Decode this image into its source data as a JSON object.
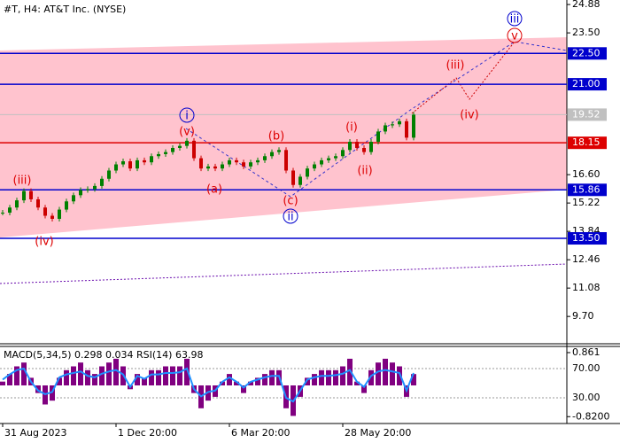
{
  "chart_data": [
    {
      "type": "candlestick",
      "title": "#T, H4:  AT&T Inc. (NYSE)",
      "categories": [
        "31 Aug 2023",
        null,
        null,
        null,
        null,
        null,
        null,
        null,
        null,
        null,
        null,
        null,
        null,
        null,
        null,
        null,
        "1 Dec 20:00",
        null,
        null,
        null,
        null,
        null,
        null,
        null,
        null,
        null,
        null,
        null,
        null,
        null,
        null,
        null,
        "6 Mar 20:00",
        null,
        null,
        null,
        null,
        null,
        null,
        null,
        null,
        null,
        null,
        null,
        null,
        null,
        null,
        null,
        "28 May 20:00",
        null,
        null,
        null,
        null,
        null,
        null,
        null,
        null,
        null,
        null
      ],
      "values": [
        14.75,
        15.0,
        15.35,
        15.8,
        15.4,
        15.0,
        14.6,
        14.45,
        14.9,
        15.3,
        15.6,
        15.85,
        15.9,
        16.05,
        16.4,
        16.8,
        17.1,
        17.25,
        16.9,
        17.3,
        17.2,
        17.5,
        17.6,
        17.7,
        17.9,
        18.0,
        18.25,
        17.4,
        16.9,
        17.0,
        16.9,
        17.1,
        17.3,
        17.2,
        17.0,
        17.2,
        17.3,
        17.5,
        17.7,
        17.8,
        16.8,
        16.1,
        16.5,
        16.9,
        17.1,
        17.3,
        17.4,
        17.5,
        17.8,
        18.2,
        17.9,
        17.7,
        18.2,
        18.7,
        19.0,
        19.05,
        19.2,
        18.4,
        19.52
      ],
      "up_color": "#008000",
      "down_color": "#cc0000",
      "ylim": [
        8.37,
        25.1
      ],
      "yticks": [
        24.88,
        {
          "value": 23.5,
          "label": "23.50"
        },
        {
          "value": 16.6,
          "label": "16.60"
        },
        15.22,
        13.84,
        12.46,
        11.08,
        {
          "value": 9.7,
          "label": "9.70"
        }
      ],
      "levels": [
        {
          "value": 22.5,
          "label": "22.50",
          "color": "#0000cd"
        },
        {
          "value": 21,
          "label": "21.00",
          "color": "#0000cd"
        },
        {
          "value": 18.15,
          "label": "18.15",
          "color": "#dd0000"
        },
        {
          "value": 15.86,
          "label": "15.86",
          "color": "#0000cd"
        },
        {
          "value": 13.5,
          "label": "13.50",
          "color": "#0000cd"
        }
      ],
      "current": {
        "value": 19.52,
        "label": "19.52",
        "color": "#c0c0c0"
      },
      "waves": [
        {
          "text": "(iii)",
          "style": "red"
        },
        {
          "text": "(iv)",
          "style": "red"
        },
        {
          "text": "i",
          "style": "circled-blue"
        },
        {
          "text": "(v)",
          "style": "red"
        },
        {
          "text": "(a)",
          "style": "red"
        },
        {
          "text": "(b)",
          "style": "red"
        },
        {
          "text": "(c)",
          "style": "red"
        },
        {
          "text": "ii",
          "style": "circled-blue"
        },
        {
          "text": "(i)",
          "style": "red"
        },
        {
          "text": "(ii)",
          "style": "red"
        },
        {
          "text": "(iii)",
          "style": "red"
        },
        {
          "text": "(iv)",
          "style": "red"
        },
        {
          "text": "v",
          "style": "circled-red"
        },
        {
          "text": "iii",
          "style": "circled-blue"
        }
      ]
    },
    {
      "type": "macd",
      "title": "MACD(5,34,5) 0.298 0.034 RSI(14) 63.98",
      "histogram": {
        "color": "#800080",
        "values": [
          0.1,
          0.3,
          0.5,
          0.6,
          0.2,
          -0.2,
          -0.5,
          -0.4,
          0.2,
          0.4,
          0.5,
          0.6,
          0.4,
          0.3,
          0.5,
          0.6,
          0.7,
          0.5,
          -0.1,
          0.3,
          0.2,
          0.4,
          0.4,
          0.5,
          0.5,
          0.5,
          0.7,
          -0.2,
          -0.6,
          -0.4,
          -0.3,
          0.1,
          0.3,
          0.1,
          -0.2,
          0.1,
          0.2,
          0.3,
          0.4,
          0.4,
          -0.6,
          -0.8,
          -0.3,
          0.2,
          0.3,
          0.4,
          0.4,
          0.4,
          0.5,
          0.7,
          0.1,
          -0.2,
          0.4,
          0.6,
          0.7,
          0.6,
          0.5,
          -0.3,
          0.298
        ]
      },
      "rsi": {
        "color": "#1e90ff",
        "axis": "y2",
        "values": [
          55,
          62,
          68,
          70,
          52,
          40,
          35,
          38,
          58,
          62,
          64,
          66,
          60,
          58,
          63,
          66,
          68,
          62,
          45,
          60,
          56,
          62,
          62,
          64,
          64,
          65,
          70,
          42,
          32,
          38,
          40,
          52,
          58,
          52,
          44,
          52,
          55,
          58,
          60,
          60,
          30,
          25,
          40,
          55,
          58,
          60,
          60,
          61,
          63,
          68,
          52,
          45,
          60,
          66,
          68,
          66,
          64,
          40,
          63.98
        ]
      },
      "ylim": [
        -1.0,
        1.0
      ],
      "yticks": [
        0.861,
        {
          "value": -0.82,
          "label": "-0.8200"
        }
      ],
      "y2lim": [
        -5,
        99
      ],
      "y2ticks": [
        {
          "value": 70,
          "label": "70.00"
        },
        {
          "value": 30,
          "label": "30.00"
        }
      ]
    }
  ]
}
